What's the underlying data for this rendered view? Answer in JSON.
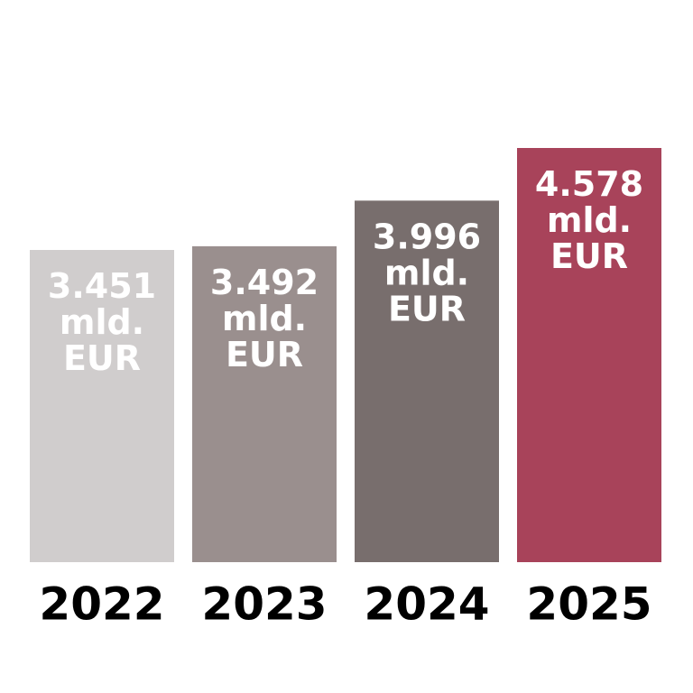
{
  "chart_data": {
    "type": "bar",
    "categories": [
      "2022",
      "2023",
      "2024",
      "2025"
    ],
    "values": [
      3.451,
      3.492,
      3.996,
      4.578
    ],
    "value_labels": [
      "3.451 mld. EUR",
      "3.492 mld. EUR",
      "3.996 mld. EUR",
      "4.578 mld. EUR"
    ],
    "colors": [
      "#d0cdcd",
      "#9a8f8e",
      "#786e6d",
      "#a8435a"
    ]
  }
}
